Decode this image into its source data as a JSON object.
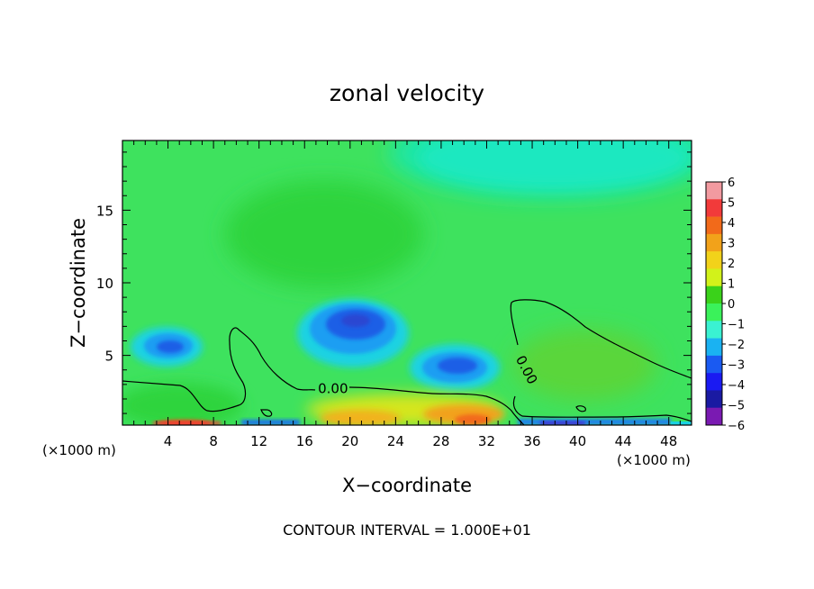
{
  "chart_data": {
    "type": "heatmap",
    "title": "zonal velocity",
    "xlabel": "X−coordinate",
    "ylabel": "Z−coordinate",
    "x_unit_left": "(×1000 m)",
    "x_unit_right": "(×1000 m)",
    "xlim": [
      0,
      50
    ],
    "ylim": [
      0.2,
      19.8
    ],
    "xticks": [
      4,
      8,
      12,
      16,
      20,
      24,
      28,
      32,
      36,
      40,
      44,
      48
    ],
    "xtick_labels": [
      "4",
      "8",
      "12",
      "16",
      "20",
      "24",
      "28",
      "32",
      "36",
      "40",
      "44",
      "48"
    ],
    "yticks": [
      5,
      10,
      15
    ],
    "ytick_labels": [
      "5",
      "10",
      "15"
    ],
    "footer": "CONTOUR INTERVAL = 1.000E+01",
    "contour_labels": [
      {
        "text": "0.00",
        "x": 18.5,
        "y": 2.7
      },
      {
        "text": "0.00",
        "x": 35.5,
        "y": 4.0
      }
    ],
    "colorbar": {
      "levels": [
        6,
        5,
        4,
        3,
        2,
        1,
        0,
        -1,
        -2,
        -3,
        -4,
        -5,
        -6
      ],
      "level_labels": [
        "6",
        "5",
        "4",
        "3",
        "2",
        "1",
        "0",
        "−1",
        "−2",
        "−3",
        "−4",
        "−5",
        "−6"
      ],
      "colors": [
        "#f29aa0",
        "#f23a3a",
        "#f26a1a",
        "#f2a21a",
        "#f2d21a",
        "#d2f21a",
        "#3ad21a",
        "#3af25a",
        "#3af2d2",
        "#1ab2f2",
        "#1a5af2",
        "#1a1af2",
        "#1a1aa2",
        "#7a1ab2"
      ]
    },
    "features": [
      {
        "kind": "negative_core",
        "x": 20,
        "y": 7.2,
        "value": -4.5
      },
      {
        "kind": "negative_core",
        "x": 30,
        "y": 4.2,
        "value": -4
      },
      {
        "kind": "negative_core",
        "x": 5,
        "y": 5.5,
        "value": -3.5
      },
      {
        "kind": "positive_near_surface",
        "x": 21,
        "y": 0.8,
        "value": 3
      },
      {
        "kind": "positive_near_surface",
        "x": 30,
        "y": 0.8,
        "value": 3.5
      },
      {
        "kind": "negative_near_surface",
        "x": 39,
        "y": 0.5,
        "value": -4.5
      }
    ]
  }
}
